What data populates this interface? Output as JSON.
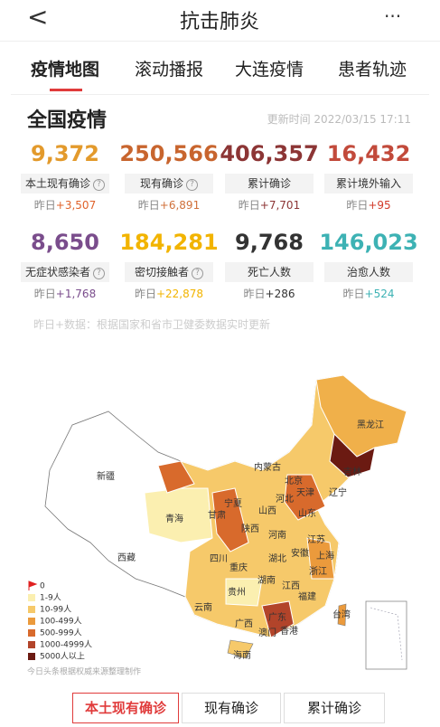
{
  "header": {
    "back": "<",
    "title": "抗击肺炎",
    "more": "···"
  },
  "tabs": [
    "疫情地图",
    "滚动播报",
    "大连疫情",
    "患者轨迹"
  ],
  "section": {
    "title": "全国疫情",
    "update_time": "更新时间 2022/03/15 17:11"
  },
  "cards": [
    {
      "value": "9,372",
      "label": "本土现有确诊",
      "help": "?",
      "delta_prefix": "昨日",
      "delta": "+3,507",
      "color": "#e39a2c",
      "delta_color": "#e0622a"
    },
    {
      "value": "250,566",
      "label": "现有确诊",
      "help": "?",
      "delta_prefix": "昨日",
      "delta": "+6,891",
      "color": "#c8652e",
      "delta_color": "#d0703a"
    },
    {
      "value": "406,357",
      "label": "累计确诊",
      "delta_prefix": "昨日",
      "delta": "+7,701",
      "color": "#8c3535",
      "delta_color": "#8c3535"
    },
    {
      "value": "16,432",
      "label": "累计境外输入",
      "delta_prefix": "昨日",
      "delta": "+95",
      "color": "#c24a3b",
      "delta_color": "#d23a2a"
    },
    {
      "value": "8,650",
      "label": "无症状感染者",
      "help": "?",
      "delta_prefix": "昨日",
      "delta": "+1,768",
      "color": "#7a4d8c",
      "delta_color": "#7a4d8c"
    },
    {
      "value": "184,281",
      "label": "密切接触者",
      "help": "?",
      "delta_prefix": "昨日",
      "delta": "+22,878",
      "color": "#f2b400",
      "delta_color": "#f2b400"
    },
    {
      "value": "9,768",
      "label": "死亡人数",
      "delta_prefix": "昨日",
      "delta": "+286",
      "color": "#333333",
      "delta_color": "#333333"
    },
    {
      "value": "146,023",
      "label": "治愈人数",
      "delta_prefix": "昨日",
      "delta": "+524",
      "color": "#3db2b4",
      "delta_color": "#3db2b4"
    }
  ],
  "note": "昨日+数据：根据国家和省市卫健委数据实时更新",
  "map": {
    "provinces": [
      "黑龙江",
      "吉林",
      "辽宁",
      "内蒙古",
      "北京",
      "天津",
      "河北",
      "宁夏",
      "山西",
      "山东",
      "甘肃",
      "青海",
      "新疆",
      "陕西",
      "河南",
      "江苏",
      "安徽",
      "上海",
      "西藏",
      "四川",
      "湖北",
      "重庆",
      "浙江",
      "湖南",
      "江西",
      "贵州",
      "福建",
      "云南",
      "广西",
      "广东",
      "台湾",
      "澳门",
      "香港",
      "海南"
    ],
    "legend": [
      {
        "label": "0",
        "color": "#e02020"
      },
      {
        "label": "1-9人",
        "color": "#fbefb0"
      },
      {
        "label": "10-99人",
        "color": "#f6c96a"
      },
      {
        "label": "100-499人",
        "color": "#eb9a3c"
      },
      {
        "label": "500-999人",
        "color": "#d86a2c"
      },
      {
        "label": "1000-4999人",
        "color": "#b2442a"
      },
      {
        "label": "5000人以上",
        "color": "#6b1a12"
      }
    ],
    "source": "今日头条根据权威来源整理制作"
  },
  "buttons": [
    "本土现有确诊",
    "现有确诊",
    "累计确诊"
  ]
}
